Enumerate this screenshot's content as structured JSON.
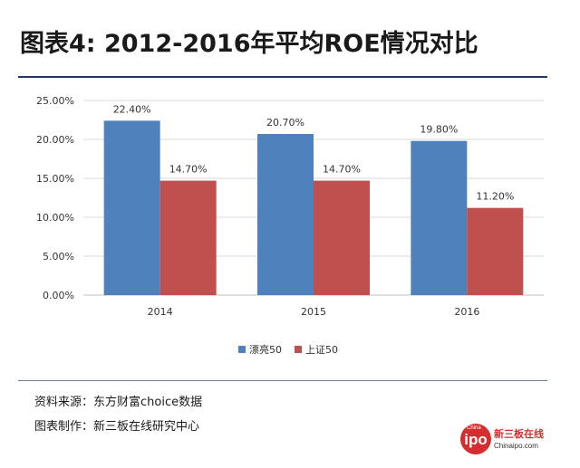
{
  "title": "图表4: 2012-2016年平均ROE情况对比",
  "footer": {
    "source": "资料来源：东方财富choice数据",
    "maker": "图表制作：新三板在线研究中心"
  },
  "logo": {
    "circle_top": "China",
    "circle_text": "ipo",
    "name": "新三板在线",
    "url": "Chinaipo.com"
  },
  "colors": {
    "series1": "#4f81bd",
    "series2": "#c0504d",
    "grid": "#d9d9d9"
  },
  "chart_data": {
    "type": "bar",
    "categories": [
      "2014",
      "2015",
      "2016"
    ],
    "series": [
      {
        "name": "漂亮50",
        "values": [
          22.4,
          20.7,
          19.8
        ],
        "labels": [
          "22.40%",
          "20.70%",
          "19.80%"
        ]
      },
      {
        "name": "上证50",
        "values": [
          14.7,
          14.7,
          11.2
        ],
        "labels": [
          "14.70%",
          "14.70%",
          "11.20%"
        ]
      }
    ],
    "ylim": [
      0,
      25
    ],
    "yticks": [
      0,
      5,
      10,
      15,
      20,
      25
    ],
    "ytick_labels": [
      "0.00%",
      "5.00%",
      "10.00%",
      "15.00%",
      "20.00%",
      "25.00%"
    ],
    "grid": true,
    "legend_position": "bottom"
  }
}
